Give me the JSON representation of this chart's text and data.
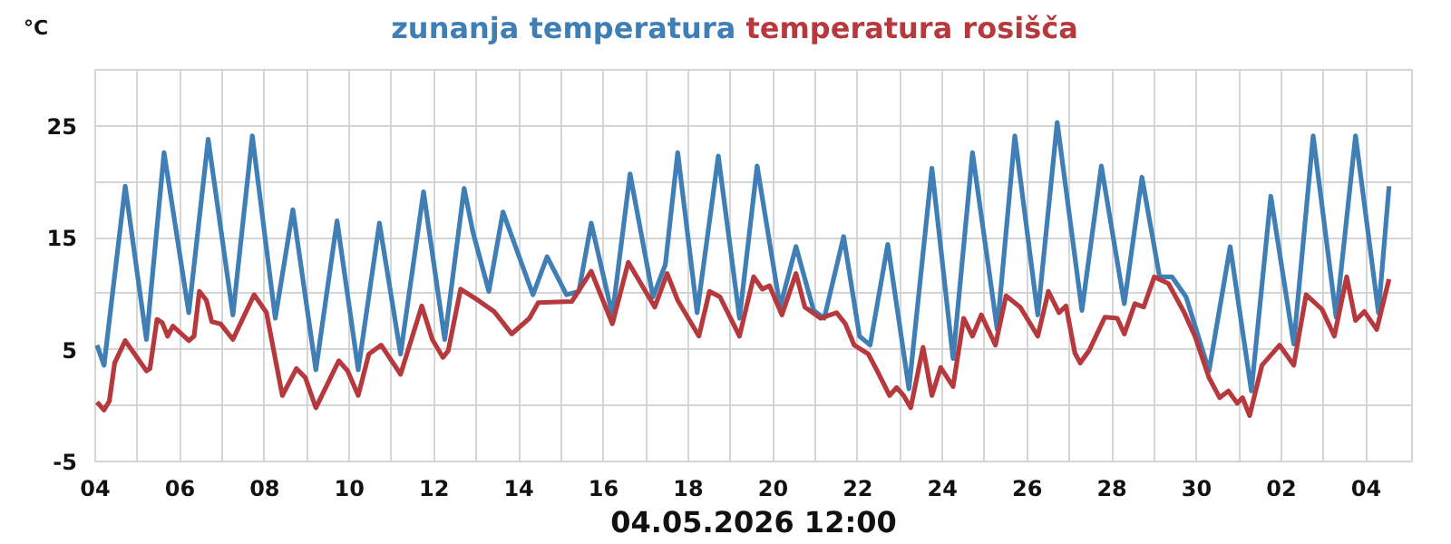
{
  "chart_data": {
    "type": "line",
    "ylabel": "°C",
    "xlabel": "04.05.2026 12:00",
    "legend": false,
    "grid": true,
    "line_style": "solid",
    "marker": "none",
    "xlim": [
      "2026-04-04",
      "2026-05-05T02:00"
    ],
    "xticks": [
      {
        "value": "2026-04-04",
        "label": "04"
      },
      {
        "value": "2026-04-05",
        "label": null
      },
      {
        "value": "2026-04-06",
        "label": "06"
      },
      {
        "value": "2026-04-07",
        "label": null
      },
      {
        "value": "2026-04-08",
        "label": "08"
      },
      {
        "value": "2026-04-09",
        "label": null
      },
      {
        "value": "2026-04-10",
        "label": "10"
      },
      {
        "value": "2026-04-11",
        "label": null
      },
      {
        "value": "2026-04-12",
        "label": "12"
      },
      {
        "value": "2026-04-13",
        "label": null
      },
      {
        "value": "2026-04-14",
        "label": "14"
      },
      {
        "value": "2026-04-15",
        "label": null
      },
      {
        "value": "2026-04-16",
        "label": "16"
      },
      {
        "value": "2026-04-17",
        "label": null
      },
      {
        "value": "2026-04-18",
        "label": "18"
      },
      {
        "value": "2026-04-19",
        "label": null
      },
      {
        "value": "2026-04-20",
        "label": "20"
      },
      {
        "value": "2026-04-21",
        "label": null
      },
      {
        "value": "2026-04-22",
        "label": "22"
      },
      {
        "value": "2026-04-23",
        "label": null
      },
      {
        "value": "2026-04-24",
        "label": "24"
      },
      {
        "value": "2026-04-25",
        "label": null
      },
      {
        "value": "2026-04-26",
        "label": "26"
      },
      {
        "value": "2026-04-27",
        "label": null
      },
      {
        "value": "2026-04-28",
        "label": "28"
      },
      {
        "value": "2026-04-29",
        "label": null
      },
      {
        "value": "2026-04-30",
        "label": "30"
      },
      {
        "value": "2026-05-01",
        "label": null
      },
      {
        "value": "2026-05-02",
        "label": "02"
      },
      {
        "value": "2026-05-03",
        "label": null
      },
      {
        "value": "2026-05-04",
        "label": "04"
      }
    ],
    "ylim": [
      -5,
      30
    ],
    "yticks": [
      -5,
      {
        "value": 0,
        "label": null
      },
      5,
      {
        "value": 10,
        "label": null
      },
      15,
      {
        "value": 20,
        "label": null
      },
      25
    ],
    "series": [
      {
        "name": "zunanja temperatura",
        "color": "#3f7fb5",
        "x": [
          "2026-04-04T01:00",
          "2026-04-04T05:00",
          "2026-04-04T17:00",
          "2026-04-05T05:00",
          "2026-04-05T15:00",
          "2026-04-06T05:00",
          "2026-04-06T16:00",
          "2026-04-07T06:00",
          "2026-04-07T17:00",
          "2026-04-08T06:00",
          "2026-04-08T16:00",
          "2026-04-09T05:00",
          "2026-04-09T17:00",
          "2026-04-10T05:00",
          "2026-04-10T17:00",
          "2026-04-11T05:00",
          "2026-04-11T18:00",
          "2026-04-12T06:00",
          "2026-04-12T17:00",
          "2026-04-12T22:00",
          "2026-04-13T07:00",
          "2026-04-13T15:00",
          "2026-04-14T08:00",
          "2026-04-14T16:00",
          "2026-04-15T03:00",
          "2026-04-15T10:00",
          "2026-04-15T17:00",
          "2026-04-16T05:00",
          "2026-04-16T15:00",
          "2026-04-17T04:00",
          "2026-04-17T11:00",
          "2026-04-17T18:00",
          "2026-04-18T05:00",
          "2026-04-18T17:00",
          "2026-04-19T05:00",
          "2026-04-19T15:00",
          "2026-04-20T04:00",
          "2026-04-20T13:00",
          "2026-04-20T23:00",
          "2026-04-21T05:00",
          "2026-04-21T16:00",
          "2026-04-22T01:00",
          "2026-04-22T07:00",
          "2026-04-22T17:00",
          "2026-04-23T05:00",
          "2026-04-23T18:00",
          "2026-04-24T06:00",
          "2026-04-24T17:00",
          "2026-04-25T07:00",
          "2026-04-25T17:00",
          "2026-04-26T06:00",
          "2026-04-26T17:00",
          "2026-04-27T07:00",
          "2026-04-27T18:00",
          "2026-04-28T07:00",
          "2026-04-28T17:00",
          "2026-04-29T03:00",
          "2026-04-29T10:00",
          "2026-04-29T18:00",
          "2026-04-30T07:00",
          "2026-04-30T19:00",
          "2026-05-01T07:00",
          "2026-05-01T18:00",
          "2026-05-02T07:00",
          "2026-05-02T18:00",
          "2026-05-03T07:00",
          "2026-05-03T18:00",
          "2026-05-04T07:00",
          "2026-05-04T13:00"
        ],
        "values": [
          5.4,
          3.6,
          19.6,
          5.9,
          22.6,
          8.3,
          23.8,
          8.1,
          24.1,
          7.8,
          17.5,
          3.2,
          16.5,
          3.2,
          16.3,
          4.6,
          19.1,
          5.9,
          19.4,
          15.5,
          10.2,
          17.3,
          9.9,
          13.3,
          9.9,
          10.2,
          16.3,
          8.1,
          20.7,
          9.7,
          12.6,
          22.6,
          8.3,
          22.3,
          7.8,
          21.4,
          8.8,
          14.2,
          8.5,
          7.8,
          15.1,
          6.2,
          5.4,
          14.4,
          1.5,
          21.2,
          4.2,
          22.6,
          6.8,
          24.1,
          8.1,
          25.3,
          8.5,
          21.4,
          9.1,
          20.4,
          11.5,
          11.5,
          9.7,
          3.1,
          14.2,
          1.3,
          18.7,
          5.5,
          24.1,
          7.9,
          24.1,
          8.3,
          19.6
        ]
      },
      {
        "name": "temperatura rosišča",
        "color": "#b5393d",
        "x": [
          "2026-04-04T01:00",
          "2026-04-04T05:00",
          "2026-04-04T08:00",
          "2026-04-04T11:00",
          "2026-04-04T17:00",
          "2026-04-05T05:00",
          "2026-04-05T07:00",
          "2026-04-05T11:00",
          "2026-04-05T14:00",
          "2026-04-05T17:00",
          "2026-04-05T20:00",
          "2026-04-06T05:00",
          "2026-04-06T08:00",
          "2026-04-06T11:00",
          "2026-04-06T15:00",
          "2026-04-06T18:00",
          "2026-04-06T23:00",
          "2026-04-07T06:00",
          "2026-04-07T18:00",
          "2026-04-08T01:00",
          "2026-04-08T10:00",
          "2026-04-08T18:00",
          "2026-04-08T23:00",
          "2026-04-09T05:00",
          "2026-04-09T18:00",
          "2026-04-09T23:00",
          "2026-04-10T05:00",
          "2026-04-10T11:00",
          "2026-04-10T18:00",
          "2026-04-11T05:00",
          "2026-04-11T17:00",
          "2026-04-11T23:00",
          "2026-04-12T05:00",
          "2026-04-12T08:00",
          "2026-04-12T15:00",
          "2026-04-13T01:00",
          "2026-04-13T10:00",
          "2026-04-13T20:00",
          "2026-04-14T06:00",
          "2026-04-14T11:00",
          "2026-04-15T06:00",
          "2026-04-15T17:00",
          "2026-04-16T05:00",
          "2026-04-16T14:00",
          "2026-04-17T05:00",
          "2026-04-17T12:00",
          "2026-04-17T18:00",
          "2026-04-18T06:00",
          "2026-04-18T12:00",
          "2026-04-18T18:00",
          "2026-04-19T05:00",
          "2026-04-19T13:00",
          "2026-04-19T18:00",
          "2026-04-19T22:00",
          "2026-04-20T05:00",
          "2026-04-20T13:00",
          "2026-04-20T18:00",
          "2026-04-21T03:00",
          "2026-04-21T12:00",
          "2026-04-21T17:00",
          "2026-04-21T22:00",
          "2026-04-22T06:00",
          "2026-04-22T11:00",
          "2026-04-22T18:00",
          "2026-04-22T22:00",
          "2026-04-23T02:00",
          "2026-04-23T06:00",
          "2026-04-23T13:00",
          "2026-04-23T18:00",
          "2026-04-23T23:00",
          "2026-04-24T06:00",
          "2026-04-24T12:00",
          "2026-04-24T17:00",
          "2026-04-24T22:00",
          "2026-04-25T06:00",
          "2026-04-25T12:00",
          "2026-04-25T20:00",
          "2026-04-26T06:00",
          "2026-04-26T12:00",
          "2026-04-26T18:00",
          "2026-04-26T22:00",
          "2026-04-27T03:00",
          "2026-04-27T06:00",
          "2026-04-27T11:00",
          "2026-04-27T20:00",
          "2026-04-28T03:00",
          "2026-04-28T07:00",
          "2026-04-28T13:00",
          "2026-04-28T18:00",
          "2026-04-29T00:00",
          "2026-04-29T08:00",
          "2026-04-29T17:00",
          "2026-04-29T23:00",
          "2026-04-30T07:00",
          "2026-04-30T13:00",
          "2026-04-30T18:00",
          "2026-04-30T23:00",
          "2026-05-01T02:00",
          "2026-05-01T06:00",
          "2026-05-01T13:00",
          "2026-05-01T23:00",
          "2026-05-02T07:00",
          "2026-05-02T14:00",
          "2026-05-02T23:00",
          "2026-05-03T06:00",
          "2026-05-03T13:00",
          "2026-05-03T18:00",
          "2026-05-03T23:00",
          "2026-05-04T06:00",
          "2026-05-04T13:00"
        ],
        "values": [
          0.3,
          -0.4,
          0.4,
          3.8,
          5.8,
          3.1,
          3.3,
          7.7,
          7.4,
          6.2,
          7.1,
          5.8,
          6.2,
          10.2,
          9.4,
          7.5,
          7.3,
          5.9,
          9.9,
          8.3,
          0.9,
          3.3,
          2.5,
          -0.2,
          4.0,
          3.1,
          0.9,
          4.6,
          5.4,
          2.8,
          8.9,
          5.9,
          4.3,
          4.9,
          10.4,
          9.4,
          8.4,
          6.4,
          7.8,
          9.2,
          9.3,
          12.0,
          7.3,
          12.8,
          8.8,
          11.8,
          9.4,
          6.2,
          10.2,
          9.7,
          6.2,
          11.5,
          10.4,
          10.7,
          8.1,
          11.8,
          8.8,
          7.8,
          8.3,
          7.3,
          5.4,
          4.6,
          3.1,
          0.9,
          1.6,
          0.9,
          -0.2,
          5.2,
          0.9,
          3.4,
          1.7,
          7.8,
          6.2,
          8.1,
          5.4,
          9.8,
          8.8,
          6.2,
          10.2,
          8.3,
          8.9,
          4.7,
          3.8,
          4.9,
          7.9,
          7.8,
          6.4,
          9.1,
          8.8,
          11.5,
          10.9,
          8.3,
          6.2,
          2.5,
          0.7,
          1.3,
          0.2,
          0.7,
          -0.9,
          3.6,
          5.4,
          3.6,
          9.9,
          8.6,
          6.2,
          11.5,
          7.6,
          8.4,
          6.8,
          11.3
        ]
      }
    ]
  }
}
